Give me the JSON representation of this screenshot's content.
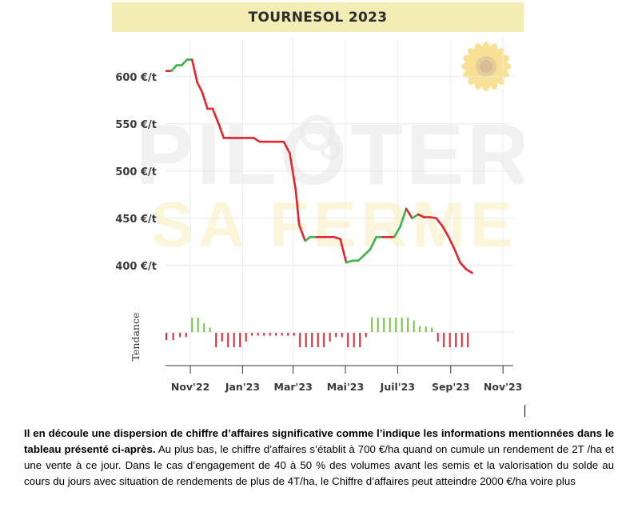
{
  "chart_data": {
    "type": "line",
    "title": "TOURNESOL 2023",
    "ylabel_lower": "Tendance",
    "y_tick_labels": [
      "600 €/t",
      "550 €/t",
      "500 €/t",
      "450 €/t",
      "400 €/t"
    ],
    "y_ticks": [
      600,
      550,
      500,
      450,
      400
    ],
    "ylim": [
      382,
      632
    ],
    "x_tick_labels": [
      "Nov'22",
      "Jan'23",
      "Mar'23",
      "Mai'23",
      "Juil'23",
      "Sep'23",
      "Nov'23"
    ],
    "x_ticks": [
      "2022-11-01",
      "2023-01-01",
      "2023-03-01",
      "2023-05-01",
      "2023-07-01",
      "2023-09-01",
      "2023-11-01"
    ],
    "xlim": [
      "2022-10-03",
      "2023-11-13"
    ],
    "series": [
      {
        "points": [
          [
            "2022-10-04",
            606
          ],
          [
            "2022-10-10",
            606
          ],
          [
            "2022-10-16",
            612
          ],
          [
            "2022-10-22",
            612
          ],
          [
            "2022-10-28",
            618
          ],
          [
            "2022-11-03",
            618
          ],
          [
            "2022-11-09",
            594
          ],
          [
            "2022-11-15",
            583
          ],
          [
            "2022-11-21",
            566
          ],
          [
            "2022-11-27",
            566
          ],
          [
            "2022-12-04",
            550
          ],
          [
            "2022-12-10",
            535
          ],
          [
            "2022-12-17",
            535
          ],
          [
            "2022-12-24",
            535
          ],
          [
            "2022-12-31",
            535
          ],
          [
            "2023-01-07",
            535
          ],
          [
            "2023-01-14",
            535
          ],
          [
            "2023-01-21",
            531
          ],
          [
            "2023-01-28",
            531
          ],
          [
            "2023-02-04",
            531
          ],
          [
            "2023-02-11",
            531
          ],
          [
            "2023-02-18",
            531
          ],
          [
            "2023-02-25",
            519
          ],
          [
            "2023-03-04",
            480
          ],
          [
            "2023-03-08",
            443
          ],
          [
            "2023-03-15",
            426
          ],
          [
            "2023-03-21",
            430
          ],
          [
            "2023-03-28",
            430
          ],
          [
            "2023-04-04",
            430
          ],
          [
            "2023-04-11",
            430
          ],
          [
            "2023-04-18",
            430
          ],
          [
            "2023-04-25",
            428
          ],
          [
            "2023-05-02",
            403
          ],
          [
            "2023-05-09",
            405
          ],
          [
            "2023-05-16",
            405
          ],
          [
            "2023-05-23",
            411
          ],
          [
            "2023-05-30",
            417
          ],
          [
            "2023-06-06",
            430
          ],
          [
            "2023-06-13",
            430
          ],
          [
            "2023-06-20",
            430
          ],
          [
            "2023-06-27",
            430
          ],
          [
            "2023-07-04",
            441
          ],
          [
            "2023-07-11",
            460
          ],
          [
            "2023-07-18",
            450
          ],
          [
            "2023-07-25",
            454
          ],
          [
            "2023-08-01",
            451
          ],
          [
            "2023-08-08",
            451
          ],
          [
            "2023-08-15",
            450
          ],
          [
            "2023-08-22",
            442
          ],
          [
            "2023-08-29",
            431
          ],
          [
            "2023-09-05",
            418
          ],
          [
            "2023-09-12",
            403
          ],
          [
            "2023-09-19",
            396
          ],
          [
            "2023-09-26",
            392
          ]
        ],
        "rising_color": "#3cb449",
        "falling_color": "#e3262d"
      }
    ],
    "trend_bars": [
      {
        "date": "2022-10-04",
        "direction": "down",
        "strength": 0.5
      },
      {
        "date": "2022-10-12",
        "direction": "down",
        "strength": 0.5
      },
      {
        "date": "2022-10-20",
        "direction": "down",
        "strength": 0.3
      },
      {
        "date": "2022-10-27",
        "direction": "down",
        "strength": 0.3
      },
      {
        "date": "2022-11-03",
        "direction": "up",
        "strength": 1.0
      },
      {
        "date": "2022-11-10",
        "direction": "up",
        "strength": 1.0
      },
      {
        "date": "2022-11-17",
        "direction": "up",
        "strength": 0.6
      },
      {
        "date": "2022-11-24",
        "direction": "up",
        "strength": 0.3
      },
      {
        "date": "2022-12-01",
        "direction": "down",
        "strength": 1.0
      },
      {
        "date": "2022-12-08",
        "direction": "down",
        "strength": 0.6
      },
      {
        "date": "2022-12-15",
        "direction": "down",
        "strength": 1.0
      },
      {
        "date": "2022-12-22",
        "direction": "down",
        "strength": 1.0
      },
      {
        "date": "2022-12-29",
        "direction": "down",
        "strength": 1.0
      },
      {
        "date": "2023-01-05",
        "direction": "down",
        "strength": 0.6
      },
      {
        "date": "2023-01-12",
        "direction": "down",
        "strength": 0.2
      },
      {
        "date": "2023-01-19",
        "direction": "down",
        "strength": 0.2
      },
      {
        "date": "2023-01-26",
        "direction": "down",
        "strength": 0.2
      },
      {
        "date": "2023-02-02",
        "direction": "down",
        "strength": 0.2
      },
      {
        "date": "2023-02-09",
        "direction": "down",
        "strength": 0.2
      },
      {
        "date": "2023-02-16",
        "direction": "down",
        "strength": 0.2
      },
      {
        "date": "2023-02-23",
        "direction": "down",
        "strength": 0.2
      },
      {
        "date": "2023-03-02",
        "direction": "down",
        "strength": 0.2
      },
      {
        "date": "2023-03-09",
        "direction": "down",
        "strength": 1.0
      },
      {
        "date": "2023-03-16",
        "direction": "down",
        "strength": 1.0
      },
      {
        "date": "2023-03-23",
        "direction": "down",
        "strength": 1.0
      },
      {
        "date": "2023-03-30",
        "direction": "down",
        "strength": 1.0
      },
      {
        "date": "2023-04-06",
        "direction": "down",
        "strength": 1.0
      },
      {
        "date": "2023-04-13",
        "direction": "down",
        "strength": 0.6
      },
      {
        "date": "2023-04-20",
        "direction": "down",
        "strength": 0.3
      },
      {
        "date": "2023-04-27",
        "direction": "down",
        "strength": 0.3
      },
      {
        "date": "2023-05-04",
        "direction": "down",
        "strength": 1.0
      },
      {
        "date": "2023-05-11",
        "direction": "down",
        "strength": 1.0
      },
      {
        "date": "2023-05-18",
        "direction": "down",
        "strength": 1.0
      },
      {
        "date": "2023-05-25",
        "direction": "down",
        "strength": 0.3
      },
      {
        "date": "2023-06-01",
        "direction": "up",
        "strength": 1.0
      },
      {
        "date": "2023-06-08",
        "direction": "up",
        "strength": 1.0
      },
      {
        "date": "2023-06-15",
        "direction": "up",
        "strength": 1.0
      },
      {
        "date": "2023-06-22",
        "direction": "up",
        "strength": 1.0
      },
      {
        "date": "2023-06-29",
        "direction": "up",
        "strength": 1.0
      },
      {
        "date": "2023-07-06",
        "direction": "up",
        "strength": 1.0
      },
      {
        "date": "2023-07-13",
        "direction": "up",
        "strength": 1.0
      },
      {
        "date": "2023-07-20",
        "direction": "up",
        "strength": 0.8
      },
      {
        "date": "2023-07-27",
        "direction": "up",
        "strength": 0.4
      },
      {
        "date": "2023-08-03",
        "direction": "up",
        "strength": 0.4
      },
      {
        "date": "2023-08-10",
        "direction": "up",
        "strength": 0.3
      },
      {
        "date": "2023-08-17",
        "direction": "down",
        "strength": 0.6
      },
      {
        "date": "2023-08-24",
        "direction": "down",
        "strength": 1.0
      },
      {
        "date": "2023-08-31",
        "direction": "down",
        "strength": 1.0
      },
      {
        "date": "2023-09-07",
        "direction": "down",
        "strength": 1.0
      },
      {
        "date": "2023-09-14",
        "direction": "down",
        "strength": 1.0
      },
      {
        "date": "2023-09-21",
        "direction": "down",
        "strength": 1.0
      }
    ],
    "grid": true,
    "watermark_text": [
      "PILOTER",
      "SA FERME"
    ]
  },
  "body": {
    "bold_text": "Il en découle une dispersion de chiffre d’affaires significative comme l’indique les informations mentionnées dans le tableau présenté ci-après.",
    "normal_text": " Au plus bas, le chiffre d’affaires s’établit à 700 €/ha quand on cumule un rendement de 2T /ha et une vente à ce jour. Dans le cas d’engagement de 40 à 50 % des volumes avant les semis et la valorisation du solde au cours du jours avec situation de rendements de plus de 4T/ha, le Chiffre d’affaires peut atteindre 2000 €/ha voire plus"
  }
}
